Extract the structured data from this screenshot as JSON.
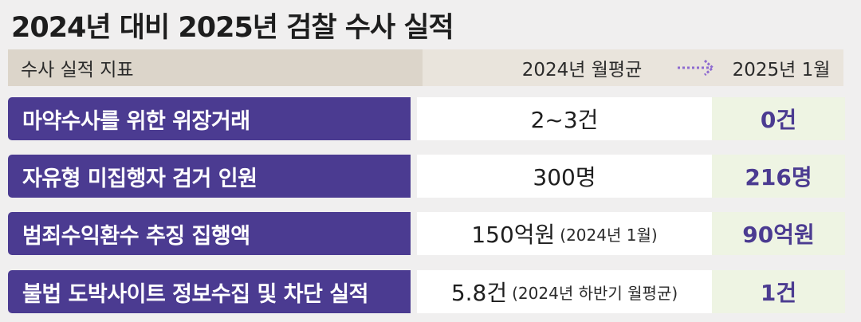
{
  "title": "2024년 대비 2025년 검찰 수사 실적",
  "header": {
    "indicator": "수사 실적 지표",
    "col_2024": "2024년 월평균",
    "col_2025": "2025년 1월",
    "arrow_color": "#8e6bd0"
  },
  "rows": [
    {
      "label": "마약수사를 위한 위장거래",
      "value_2024": "2~3건",
      "note_2024": "",
      "value_2025": "0건"
    },
    {
      "label": "자유형 미집행자 검거 인원",
      "value_2024": "300명",
      "note_2024": "",
      "value_2025": "216명"
    },
    {
      "label": "범죄수익환수 추징 집행액",
      "value_2024": "150억원",
      "note_2024": "(2024년 1월)",
      "value_2025": "90억원"
    },
    {
      "label": "불법 도박사이트 정보수집 및 차단 실적",
      "value_2024": "5.8건",
      "note_2024": "(2024년 하반기 월평균)",
      "value_2025": "1건"
    }
  ],
  "colors": {
    "label_bg": "#4b3b91",
    "highlight_text": "#4b3b91",
    "highlight_bg": "#eef4e3"
  }
}
